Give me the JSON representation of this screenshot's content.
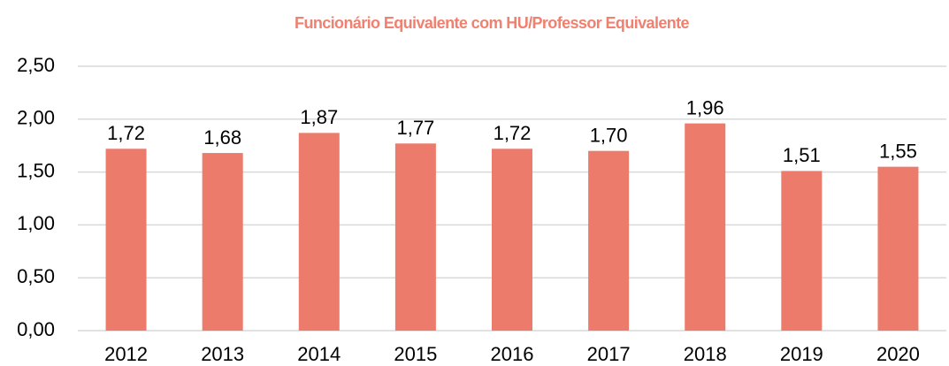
{
  "chart_data": {
    "type": "bar",
    "title": "Funcionário Equivalente com HU/Professor Equivalente",
    "categories": [
      "2012",
      "2013",
      "2014",
      "2015",
      "2016",
      "2017",
      "2018",
      "2019",
      "2020"
    ],
    "values": [
      1.72,
      1.68,
      1.87,
      1.77,
      1.72,
      1.7,
      1.96,
      1.51,
      1.55
    ],
    "value_labels": [
      "1,72",
      "1,68",
      "1,87",
      "1,77",
      "1,72",
      "1,70",
      "1,96",
      "1,51",
      "1,55"
    ],
    "color": "#ed7b6b",
    "ylim": [
      0,
      2.5
    ],
    "yticks": [
      {
        "value": 0,
        "label": "0,00"
      },
      {
        "value": 0.5,
        "label": "0,50"
      },
      {
        "value": 1,
        "label": "1,00"
      },
      {
        "value": 1.5,
        "label": "1,50"
      },
      {
        "value": 2,
        "label": "2,00"
      },
      {
        "value": 2.5,
        "label": "2,50"
      }
    ],
    "grid": true
  }
}
